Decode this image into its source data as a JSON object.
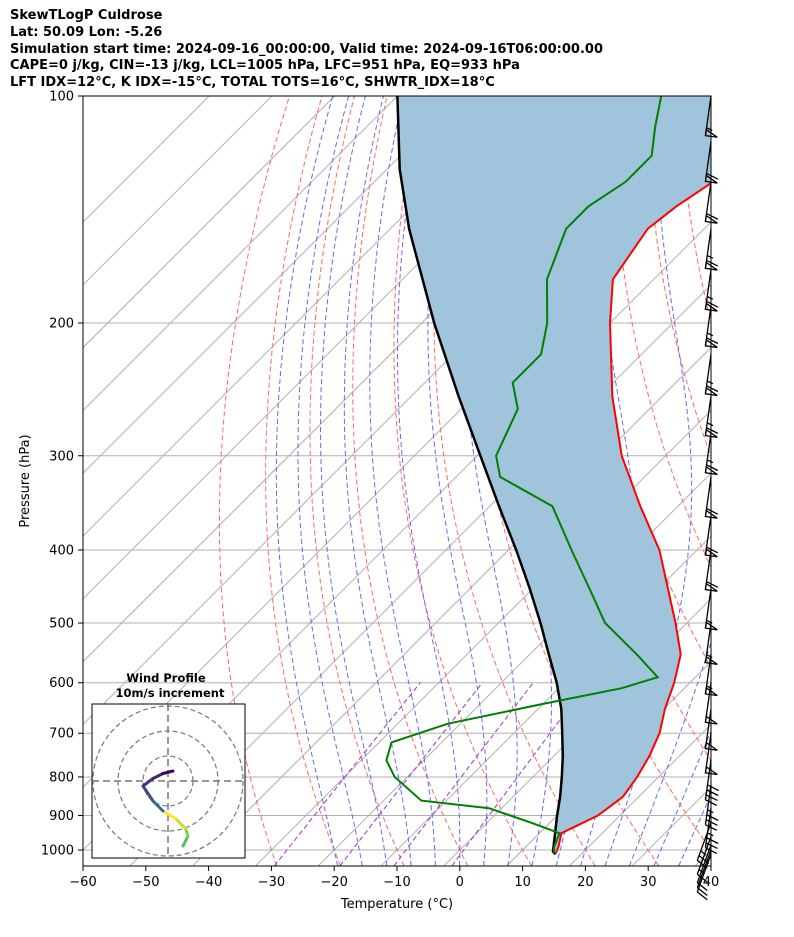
{
  "header": {
    "line1": "SkewTLogP Culdrose",
    "line2": "Lat: 50.09   Lon: -5.26",
    "line3": "Simulation start time: 2024-09-16_00:00:00, Valid time: 2024-09-16T06:00:00.00",
    "line4": "CAPE=0 j/kg, CIN=-13 j/kg, LCL=1005 hPa, LFC=951 hPa, EQ=933 hPa",
    "line5": "LFT IDX=12°C, K IDX=-15°C, TOTAL TOTS=16°C, SHWTR_IDX=18°C"
  },
  "chart_data": {
    "type": "skewt",
    "xlabel": "Temperature (°C)",
    "ylabel": "Pressure (hPa)",
    "xlim": [
      -60,
      40
    ],
    "ylim": [
      1050,
      100
    ],
    "x_ticks": [
      -60,
      -50,
      -40,
      -30,
      -20,
      -10,
      0,
      10,
      20,
      30,
      40
    ],
    "x_tick_labels": [
      "−60",
      "−50",
      "−40",
      "−30",
      "−20",
      "−10",
      "0",
      "10",
      "20",
      "30",
      "40"
    ],
    "y_ticks": [
      1000,
      900,
      800,
      700,
      600,
      500,
      400,
      300,
      200,
      100
    ],
    "y_tick_labels": [
      "1000",
      "900",
      "800",
      "700",
      "600",
      "500",
      "400",
      "300",
      "200",
      "100"
    ],
    "grid": true,
    "colors": {
      "temperature": "#ff0000",
      "dewpoint": "#008000",
      "parcel": "#000000",
      "cape_fill": "#a1c4dd",
      "dry_adiabat": "#ff6666",
      "moist_adiabat": "#6666ff",
      "mixing_ratio": "#9933cc",
      "isotherm": "#b0b0b0"
    },
    "temperature": {
      "p": [
        1010,
        990,
        950,
        900,
        850,
        800,
        750,
        700,
        650,
        600,
        550,
        500,
        450,
        400,
        350,
        300,
        250,
        200,
        175,
        150,
        140,
        120,
        100
      ],
      "t": [
        15.8,
        15.2,
        13.5,
        16.5,
        17.5,
        16.6,
        15.2,
        13.2,
        10.2,
        7.5,
        4.0,
        -1.8,
        -8.5,
        -16.0,
        -26.0,
        -37.0,
        -48.0,
        -60.0,
        -66.5,
        -69.0,
        -68.0,
        -64.0,
        -57.0
      ]
    },
    "dewpoint": {
      "p": [
        1010,
        990,
        950,
        920,
        880,
        860,
        800,
        760,
        720,
        680,
        640,
        610,
        590,
        550,
        500,
        450,
        400,
        350,
        320,
        300,
        260,
        240,
        220,
        200,
        175,
        150,
        140,
        130,
        120,
        110,
        100
      ],
      "t": [
        15.5,
        14.5,
        13.2,
        7.0,
        -2.0,
        -14.0,
        -22.0,
        -26.0,
        -28.0,
        -22.0,
        -10.0,
        0.0,
        4.0,
        -3.0,
        -13.0,
        -21.0,
        -30.0,
        -40.0,
        -53.0,
        -57.0,
        -61.0,
        -66.0,
        -66.0,
        -70.0,
        -77.0,
        -82.0,
        -82.0,
        -80.0,
        -80.0,
        -84.0,
        -88.0
      ]
    },
    "parcel": {
      "p": [
        1013,
        1005,
        990,
        950,
        900,
        850,
        800,
        750,
        700,
        650,
        600,
        550,
        500,
        450,
        400,
        350,
        300,
        250,
        200,
        150,
        125,
        100
      ],
      "t": [
        15.9,
        15.1,
        14.4,
        12.5,
        10.0,
        7.5,
        4.6,
        1.4,
        -2.3,
        -6.3,
        -11.2,
        -17.0,
        -23.3,
        -30.5,
        -38.8,
        -48.5,
        -59.5,
        -72.5,
        -88.0,
        -107.0,
        -118.0,
        -130.0
      ]
    },
    "cape_fill_between": "parcel-temperature",
    "wind_barbs": {
      "p": [
        1013,
        1000,
        985,
        960,
        920,
        880,
        820,
        760,
        700,
        650,
        600,
        550,
        500,
        450,
        400,
        360,
        320,
        280,
        250,
        220,
        190,
        170,
        150,
        130,
        115,
        100
      ],
      "speed_kt": [
        10,
        10,
        10,
        15,
        25,
        35,
        35,
        40,
        50,
        50,
        50,
        55,
        55,
        55,
        60,
        60,
        60,
        65,
        65,
        65,
        65,
        65,
        65,
        60,
        60,
        55
      ]
    },
    "inset": {
      "title": "Wind Profile",
      "subtitle": "10m/s increment",
      "rings": 3,
      "hodograph": {
        "u": [
          0.6,
          0.8,
          0.7,
          0.3,
          -0.2,
          -0.6,
          -0.8,
          -1.0,
          -0.6,
          -0.2,
          0.2
        ],
        "v": [
          -2.6,
          -2.2,
          -1.9,
          -1.5,
          -1.2,
          -0.8,
          -0.5,
          -0.2,
          0.1,
          0.3,
          0.4
        ],
        "colors": [
          "#4ec05a",
          "#7fd34e",
          "#c5df2c",
          "#fde725",
          "#2d708e",
          "#3b528b",
          "#414487",
          "#46327e",
          "#481f70",
          "#440154",
          "#440154"
        ]
      }
    }
  }
}
